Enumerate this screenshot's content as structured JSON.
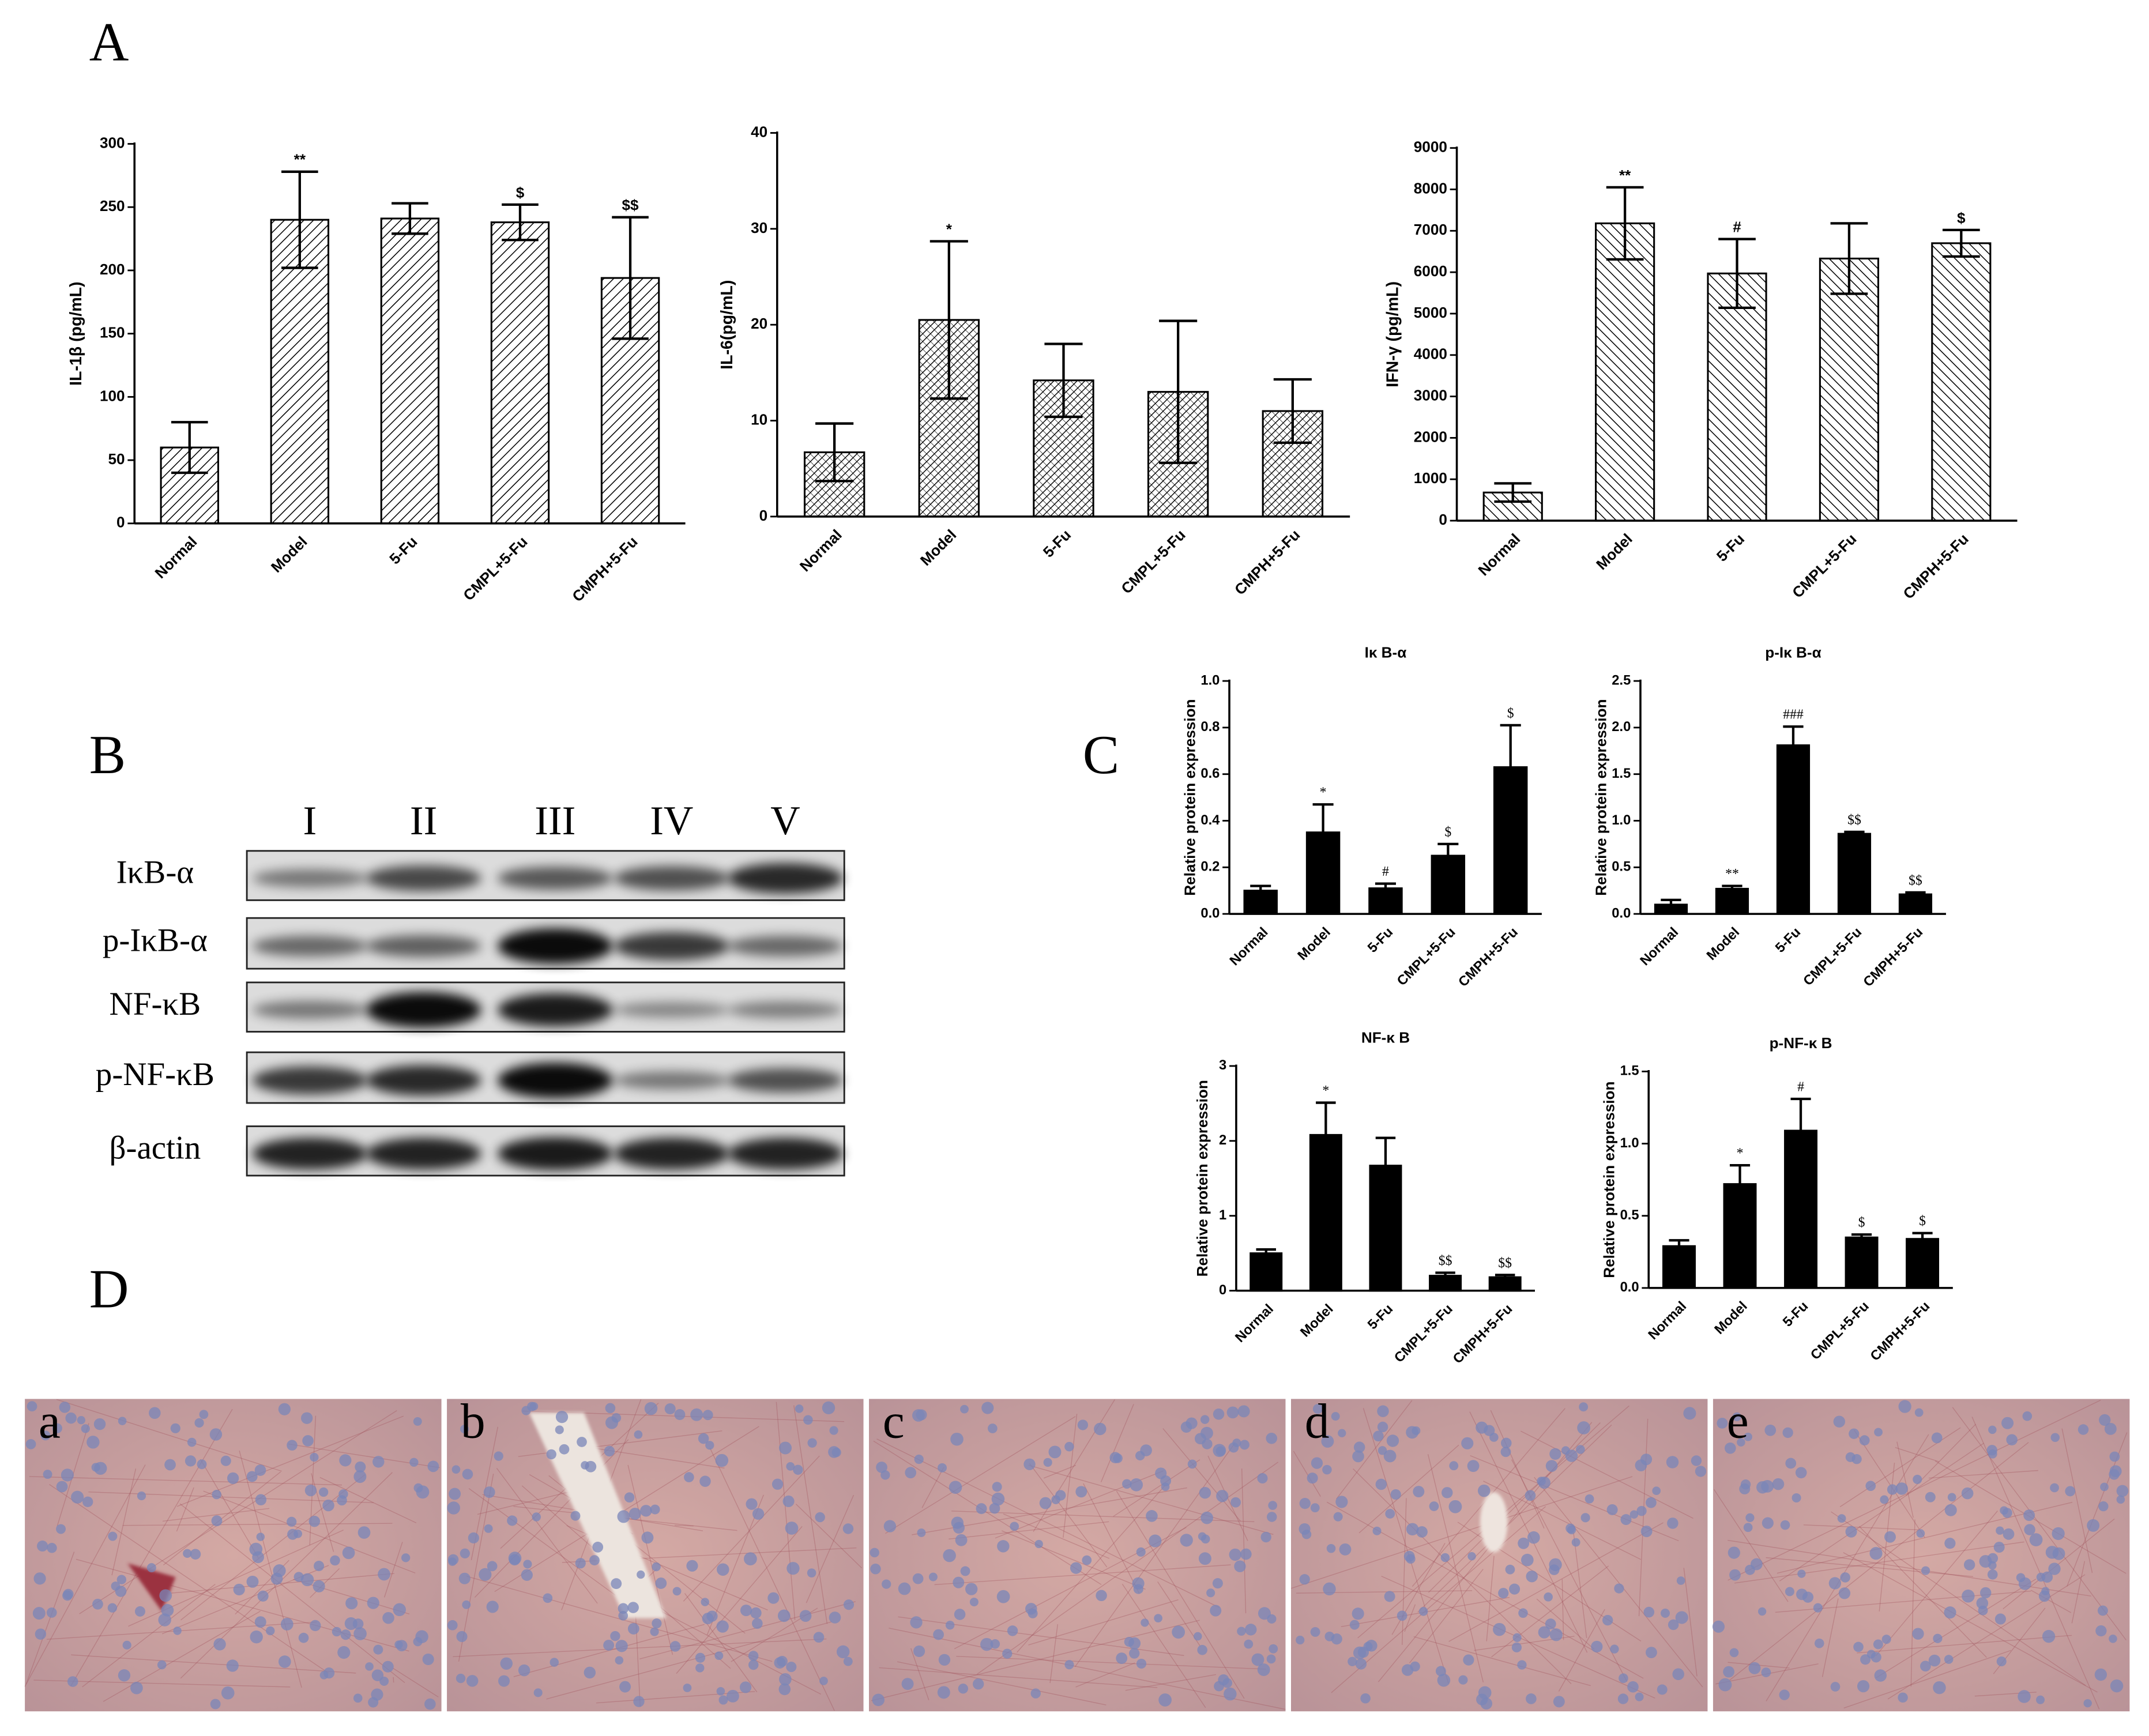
{
  "panel_labels": [
    "A",
    "B",
    "C",
    "D"
  ],
  "blot": {
    "lanes": [
      "I",
      "II",
      "III",
      "IV",
      "V"
    ],
    "proteins": [
      "IκB-α",
      "p-IκB-α",
      "NF-κB",
      "p-NF-κB",
      "β-actin"
    ]
  },
  "histology": {
    "labels": [
      "a",
      "b",
      "c",
      "d",
      "e"
    ]
  },
  "chart_data": [
    {
      "type": "bar",
      "pattern": "hatch",
      "color": "#000000",
      "ylabel": "IL-1β (pg/mL)",
      "categories": [
        "Normal",
        "Model",
        "5-Fu",
        "CMPL+5-Fu",
        "CMPH+5-Fu"
      ],
      "values": [
        60,
        240,
        241,
        238,
        194
      ],
      "errors": [
        20,
        38,
        12,
        14,
        48
      ],
      "annotations": [
        null,
        "**",
        null,
        "$",
        "$$"
      ],
      "ylim": [
        0,
        300
      ],
      "yticks": [
        0,
        50,
        100,
        150,
        200,
        250,
        300
      ]
    },
    {
      "type": "bar",
      "pattern": "hatch",
      "color": "#000000",
      "ylabel": "IL-6(pg/mL)",
      "categories": [
        "Normal",
        "Model",
        "5-Fu",
        "CMPL+5-Fu",
        "CMPH+5-Fu"
      ],
      "values": [
        6.7,
        20.5,
        14.2,
        13,
        11
      ],
      "errors": [
        3,
        8.2,
        3.8,
        7.4,
        3.3
      ],
      "annotations": [
        null,
        "*",
        null,
        null,
        null
      ],
      "ylim": [
        0,
        40
      ],
      "yticks": [
        0,
        10,
        20,
        30,
        40
      ]
    },
    {
      "type": "bar",
      "pattern": "hatch",
      "color": "#000000",
      "ylabel": "IFN-γ (pg/mL)",
      "categories": [
        "Normal",
        "Model",
        "5-Fu",
        "CMPL+5-Fu",
        "CMPH+5-Fu"
      ],
      "values": [
        680,
        7180,
        5970,
        6330,
        6700
      ],
      "errors": [
        220,
        870,
        830,
        850,
        320
      ],
      "annotations": [
        null,
        "**",
        "#",
        null,
        "$"
      ],
      "ylim": [
        0,
        9000
      ],
      "yticks": [
        0,
        1000,
        2000,
        3000,
        4000,
        5000,
        6000,
        7000,
        8000,
        9000
      ]
    },
    {
      "type": "bar",
      "pattern": "solid",
      "color": "#000000",
      "title": "Iκ B-α",
      "ylabel": "Relative protein expression",
      "categories": [
        "Normal",
        "Model",
        "5-Fu",
        "CMPL+5-Fu",
        "CMPH+5-Fu"
      ],
      "values": [
        0.1,
        0.35,
        0.11,
        0.25,
        0.63
      ],
      "errors": [
        0.02,
        0.12,
        0.02,
        0.05,
        0.18
      ],
      "annotations": [
        null,
        "*",
        "#",
        "$",
        "$"
      ],
      "ylim": [
        0,
        1
      ],
      "yticks": [
        {
          "value": 0,
          "label": "0.0"
        },
        0.2,
        0.4,
        0.6,
        0.8,
        {
          "value": 1,
          "label": "1.0"
        }
      ]
    },
    {
      "type": "bar",
      "pattern": "solid",
      "color": "#000000",
      "title": "p-Iκ B-α",
      "ylabel": "Relative protein expression",
      "categories": [
        "Normal",
        "Model",
        "5-Fu",
        "CMPL+5-Fu",
        "CMPH+5-Fu"
      ],
      "values": [
        0.1,
        0.27,
        1.81,
        0.86,
        0.21
      ],
      "errors": [
        0.05,
        0.03,
        0.2,
        0.02,
        0.02
      ],
      "annotations": [
        null,
        "**",
        "###",
        "$$",
        "$$"
      ],
      "ylim": [
        0,
        2.5
      ],
      "yticks": [
        {
          "value": 0,
          "label": "0.0"
        },
        0.5,
        {
          "value": 1,
          "label": "1.0"
        },
        1.5,
        {
          "value": 2,
          "label": "2.0"
        },
        2.5
      ]
    },
    {
      "type": "bar",
      "pattern": "solid",
      "color": "#000000",
      "title": "NF-κ B",
      "ylabel": "Relative protein expression",
      "categories": [
        "Normal",
        "Model",
        "5-Fu",
        "CMPL+5-Fu",
        "CMPH+5-Fu"
      ],
      "values": [
        0.5,
        2.08,
        1.67,
        0.2,
        0.18
      ],
      "errors": [
        0.05,
        0.43,
        0.37,
        0.04,
        0.03
      ],
      "annotations": [
        null,
        "*",
        null,
        "$$",
        "$$"
      ],
      "ylim": [
        0,
        3
      ],
      "yticks": [
        0,
        1,
        2,
        3
      ]
    },
    {
      "type": "bar",
      "pattern": "solid",
      "color": "#000000",
      "title": "p-NF-κ B",
      "ylabel": "Relative protein expression",
      "categories": [
        "Normal",
        "Model",
        "5-Fu",
        "CMPL+5-Fu",
        "CMPH+5-Fu"
      ],
      "values": [
        0.29,
        0.72,
        1.09,
        0.35,
        0.34
      ],
      "errors": [
        0.04,
        0.13,
        0.22,
        0.02,
        0.04
      ],
      "annotations": [
        null,
        "*",
        "#",
        "$",
        "$"
      ],
      "ylim": [
        0,
        1.5
      ],
      "yticks": [
        {
          "value": 0,
          "label": "0.0"
        },
        0.5,
        {
          "value": 1,
          "label": "1.0"
        },
        1.5
      ]
    }
  ]
}
